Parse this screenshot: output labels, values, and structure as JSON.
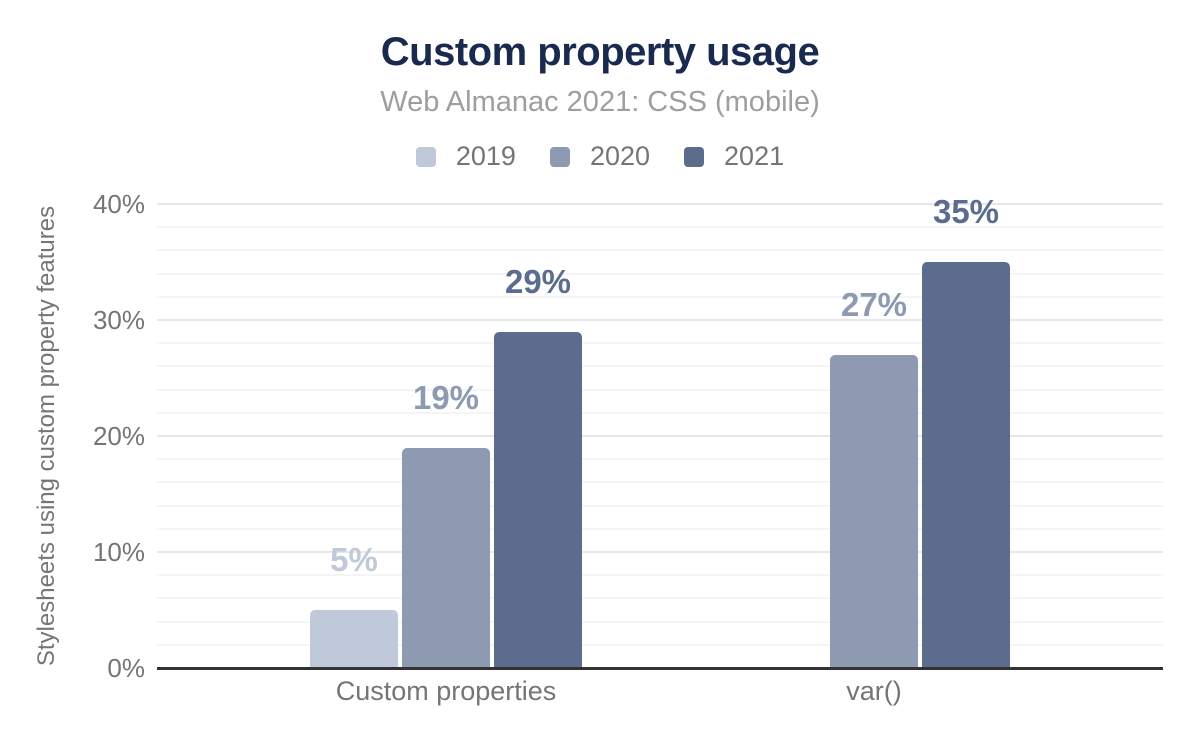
{
  "chart_data": {
    "type": "bar",
    "title": "Custom property usage",
    "subtitle": "Web Almanac 2021: CSS (mobile)",
    "ylabel": "Stylesheets using custom property features",
    "xlabel": "",
    "categories": [
      "Custom properties",
      "var()"
    ],
    "series": [
      {
        "name": "2019",
        "color": "#c0c9d9",
        "values": [
          5,
          null
        ]
      },
      {
        "name": "2020",
        "color": "#8d9ab2",
        "values": [
          19,
          27
        ]
      },
      {
        "name": "2021",
        "color": "#5b6c8c",
        "values": [
          29,
          35
        ]
      }
    ],
    "value_labels": [
      [
        "5%",
        "19%",
        "29%"
      ],
      [
        null,
        "27%",
        "35%"
      ]
    ],
    "ylim": [
      0,
      40
    ],
    "yticks": [
      {
        "value": 0,
        "label": "0%"
      },
      {
        "value": 10,
        "label": "10%"
      },
      {
        "value": 20,
        "label": "20%"
      },
      {
        "value": 30,
        "label": "30%"
      },
      {
        "value": 40,
        "label": "40%"
      }
    ],
    "minor_grid_step": 2,
    "grid": "horizontal, major and minor lines",
    "legend_position": "top"
  },
  "colors": {
    "title": "#1a2a4f",
    "subtitle": "#9e9e9e",
    "axis_text": "#757575",
    "axis_line": "#333333",
    "major_grid": "#e8e8e8",
    "minor_grid": "#f5f5f5",
    "background": "#ffffff"
  }
}
